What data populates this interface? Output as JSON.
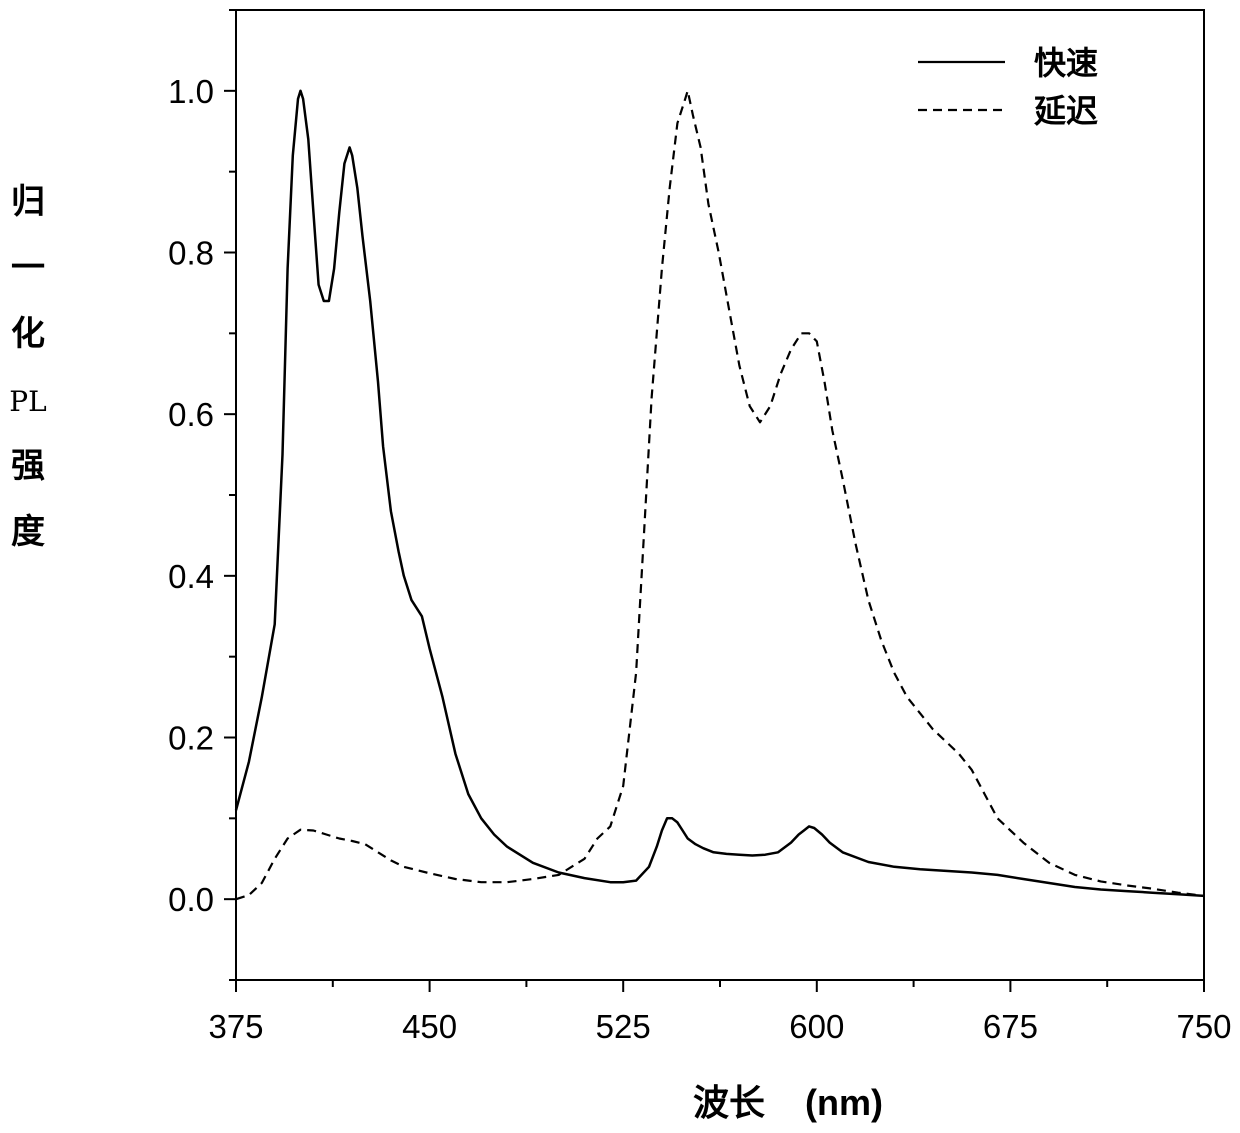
{
  "chart_data": {
    "type": "line",
    "title": "",
    "xlabel": "波长    (nm)",
    "ylabel_chars": [
      "归",
      "一",
      "化",
      "PL",
      "强",
      "度"
    ],
    "xlim": [
      375,
      750
    ],
    "ylim": [
      -0.1,
      1.1
    ],
    "xticks": [
      375,
      450,
      525,
      600,
      675,
      750
    ],
    "xtick_labels": [
      "375",
      "450",
      "525",
      "600",
      "675",
      "750"
    ],
    "yticks": [
      0.0,
      0.2,
      0.4,
      0.6,
      0.8,
      1.0
    ],
    "ytick_labels": [
      "0.0",
      "0.2",
      "0.4",
      "0.6",
      "0.8",
      "1.0"
    ],
    "grid": false,
    "legend_position": "top-right",
    "series": [
      {
        "name": "快速",
        "style": "solid",
        "color": "#000000",
        "x": [
          375,
          380,
          385,
          390,
          393,
          395,
          397,
          399,
          400,
          401,
          403,
          405,
          407,
          409,
          411,
          413,
          415,
          417,
          419,
          420,
          422,
          424,
          427,
          430,
          432,
          435,
          438,
          440,
          443,
          447,
          450,
          455,
          460,
          465,
          470,
          475,
          480,
          490,
          500,
          510,
          520,
          525,
          530,
          535,
          538,
          540,
          542,
          544,
          546,
          548,
          550,
          553,
          556,
          560,
          565,
          570,
          575,
          580,
          585,
          590,
          593,
          595,
          597,
          599,
          602,
          605,
          610,
          620,
          630,
          640,
          650,
          660,
          670,
          680,
          690,
          700,
          710,
          720,
          730,
          740,
          750
        ],
        "y": [
          0.11,
          0.17,
          0.25,
          0.34,
          0.55,
          0.78,
          0.92,
          0.99,
          1.0,
          0.99,
          0.94,
          0.85,
          0.76,
          0.74,
          0.74,
          0.78,
          0.85,
          0.91,
          0.93,
          0.92,
          0.88,
          0.82,
          0.74,
          0.64,
          0.56,
          0.48,
          0.43,
          0.4,
          0.37,
          0.35,
          0.31,
          0.25,
          0.18,
          0.13,
          0.1,
          0.08,
          0.065,
          0.045,
          0.033,
          0.026,
          0.021,
          0.021,
          0.023,
          0.04,
          0.065,
          0.085,
          0.1,
          0.1,
          0.095,
          0.085,
          0.075,
          0.068,
          0.063,
          0.058,
          0.056,
          0.055,
          0.054,
          0.055,
          0.058,
          0.07,
          0.08,
          0.085,
          0.09,
          0.088,
          0.08,
          0.07,
          0.058,
          0.046,
          0.04,
          0.037,
          0.035,
          0.033,
          0.03,
          0.025,
          0.02,
          0.015,
          0.012,
          0.01,
          0.008,
          0.006,
          0.004
        ]
      },
      {
        "name": "延迟",
        "style": "dashed",
        "color": "#000000",
        "x": [
          375,
          380,
          385,
          390,
          395,
          400,
          405,
          410,
          415,
          420,
          425,
          430,
          435,
          440,
          450,
          460,
          470,
          480,
          490,
          500,
          510,
          515,
          520,
          525,
          530,
          533,
          536,
          540,
          543,
          546,
          549,
          550,
          552,
          555,
          558,
          562,
          566,
          570,
          574,
          578,
          582,
          586,
          590,
          594,
          597,
          600,
          603,
          606,
          610,
          615,
          620,
          625,
          630,
          635,
          640,
          645,
          650,
          655,
          660,
          665,
          670,
          680,
          690,
          700,
          710,
          720,
          730,
          740,
          750
        ],
        "y": [
          0.0,
          0.005,
          0.02,
          0.05,
          0.075,
          0.086,
          0.085,
          0.08,
          0.075,
          0.072,
          0.068,
          0.058,
          0.048,
          0.04,
          0.032,
          0.025,
          0.021,
          0.021,
          0.025,
          0.03,
          0.05,
          0.075,
          0.09,
          0.14,
          0.28,
          0.45,
          0.62,
          0.78,
          0.88,
          0.96,
          0.99,
          1.0,
          0.97,
          0.93,
          0.86,
          0.8,
          0.73,
          0.66,
          0.61,
          0.59,
          0.61,
          0.65,
          0.68,
          0.7,
          0.7,
          0.69,
          0.64,
          0.58,
          0.52,
          0.44,
          0.37,
          0.32,
          0.28,
          0.25,
          0.23,
          0.21,
          0.195,
          0.18,
          0.16,
          0.13,
          0.1,
          0.07,
          0.045,
          0.03,
          0.022,
          0.017,
          0.013,
          0.008,
          0.004
        ]
      }
    ]
  }
}
